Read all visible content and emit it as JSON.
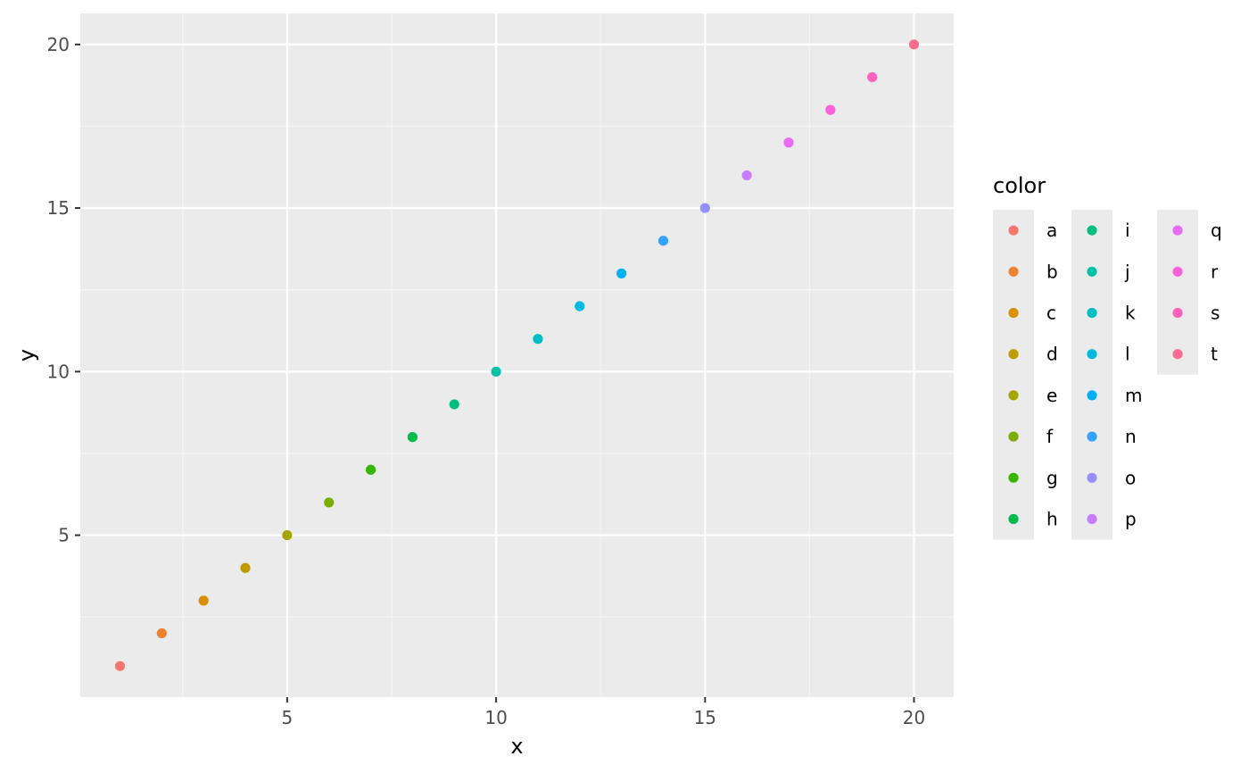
{
  "chart_data": {
    "type": "scatter",
    "title": "",
    "xlabel": "x",
    "ylabel": "y",
    "xlim": [
      0.05,
      20.95
    ],
    "ylim": [
      0.05,
      20.95
    ],
    "x_ticks": [
      5,
      10,
      15,
      20
    ],
    "y_ticks": [
      5,
      10,
      15,
      20
    ],
    "grid": true,
    "legend": {
      "title": "color",
      "position": "right",
      "columns": 3
    },
    "points": [
      {
        "x": 1,
        "y": 1,
        "color_key": "a",
        "color": "#F8766D"
      },
      {
        "x": 2,
        "y": 2,
        "color_key": "b",
        "color": "#EA8331"
      },
      {
        "x": 3,
        "y": 3,
        "color_key": "c",
        "color": "#D89000"
      },
      {
        "x": 4,
        "y": 4,
        "color_key": "d",
        "color": "#C09B00"
      },
      {
        "x": 5,
        "y": 5,
        "color_key": "e",
        "color": "#A3A500"
      },
      {
        "x": 6,
        "y": 6,
        "color_key": "f",
        "color": "#7CAE00"
      },
      {
        "x": 7,
        "y": 7,
        "color_key": "g",
        "color": "#39B600"
      },
      {
        "x": 8,
        "y": 8,
        "color_key": "h",
        "color": "#00BB4E"
      },
      {
        "x": 9,
        "y": 9,
        "color_key": "i",
        "color": "#00BF7D"
      },
      {
        "x": 10,
        "y": 10,
        "color_key": "j",
        "color": "#00C1A3"
      },
      {
        "x": 11,
        "y": 11,
        "color_key": "k",
        "color": "#00BFC4"
      },
      {
        "x": 12,
        "y": 12,
        "color_key": "l",
        "color": "#00BAE0"
      },
      {
        "x": 13,
        "y": 13,
        "color_key": "m",
        "color": "#00B0F6"
      },
      {
        "x": 14,
        "y": 14,
        "color_key": "n",
        "color": "#35A2FF"
      },
      {
        "x": 15,
        "y": 15,
        "color_key": "o",
        "color": "#9590FF"
      },
      {
        "x": 16,
        "y": 16,
        "color_key": "p",
        "color": "#C77CFF"
      },
      {
        "x": 17,
        "y": 17,
        "color_key": "q",
        "color": "#E76BF3"
      },
      {
        "x": 18,
        "y": 18,
        "color_key": "r",
        "color": "#FA62DB"
      },
      {
        "x": 19,
        "y": 19,
        "color_key": "s",
        "color": "#FF62BC"
      },
      {
        "x": 20,
        "y": 20,
        "color_key": "t",
        "color": "#FF6C91"
      }
    ]
  },
  "colors": {
    "panel_background": "#EBEBEB",
    "grid_major": "#FFFFFF",
    "grid_minor": "#F5F5F5"
  }
}
